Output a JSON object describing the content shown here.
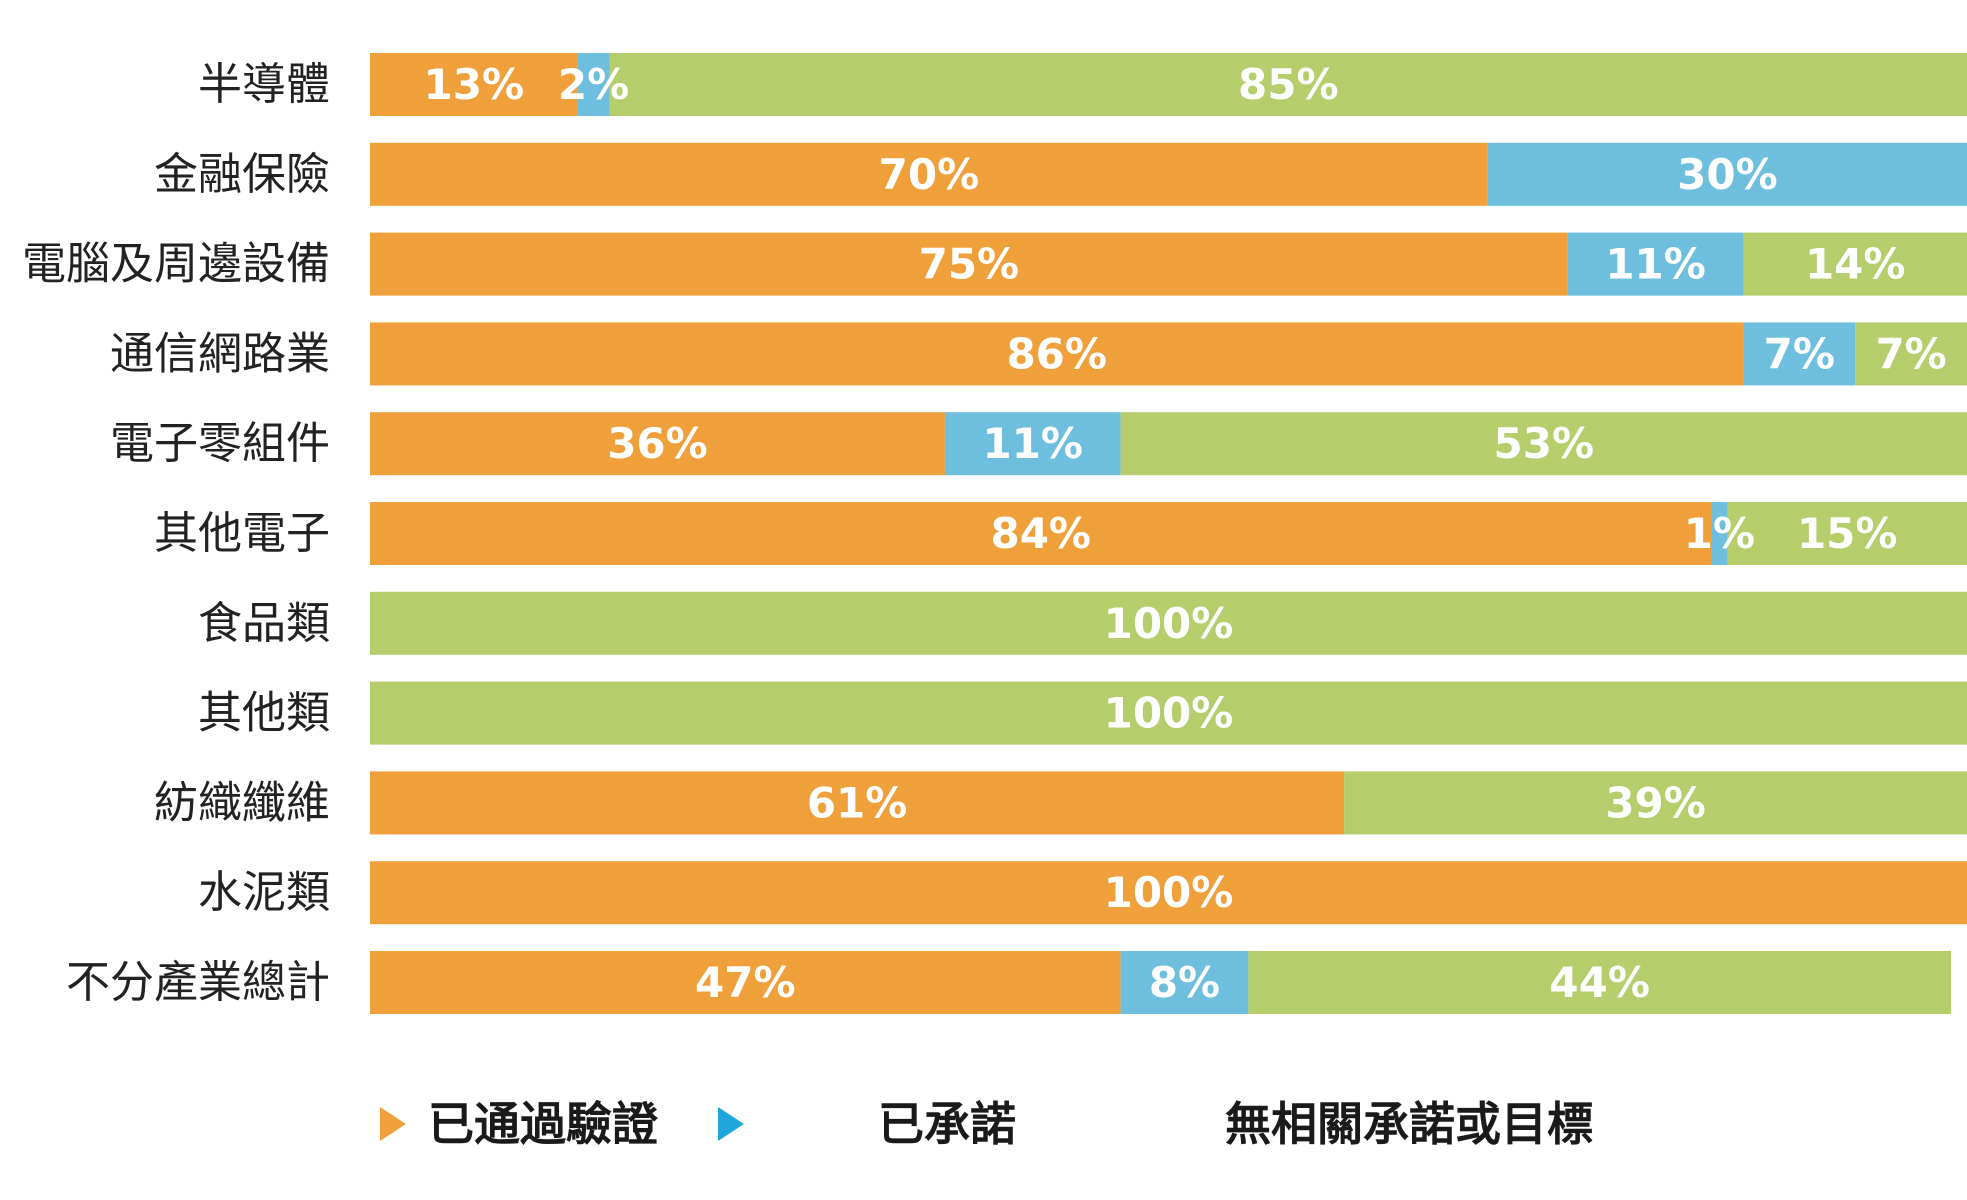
{
  "chart_data": {
    "type": "bar",
    "orientation": "horizontal",
    "stacked": true,
    "title": "",
    "xlabel": "",
    "ylabel": "",
    "xlim": [
      0,
      100
    ],
    "grid": false,
    "legend_position": "bottom",
    "categories": [
      "半導體",
      "金融保險",
      "電腦及周邊設備",
      "通信網路業",
      "電子零組件",
      "其他電子",
      "食品類",
      "其他類",
      "紡織纖維",
      "水泥類",
      "不分產業總計"
    ],
    "series": [
      {
        "name": "已通過驗證",
        "color": "#EFA03A",
        "values": [
          13,
          70,
          75,
          86,
          36,
          84,
          0,
          0,
          61,
          100,
          47
        ]
      },
      {
        "name": "已承諾",
        "color": "#6EBEDE",
        "values": [
          2,
          30,
          11,
          7,
          11,
          1,
          0,
          0,
          0,
          0,
          8
        ]
      },
      {
        "name": "無相關承諾或目標",
        "color": "#B5CD6B",
        "values": [
          85,
          0,
          14,
          7,
          53,
          15,
          100,
          100,
          39,
          0,
          44
        ]
      }
    ],
    "data_labels": [
      [
        "13%",
        "2%",
        "85%"
      ],
      [
        "70%",
        "30%",
        ""
      ],
      [
        "75%",
        "11%",
        "14%"
      ],
      [
        "86%",
        "7%",
        "7%"
      ],
      [
        "36%",
        "11%",
        "53%"
      ],
      [
        "84%",
        "1%",
        "15%"
      ],
      [
        "",
        "",
        "100%"
      ],
      [
        "",
        "",
        "100%"
      ],
      [
        "61%",
        "",
        "39%"
      ],
      [
        "100%",
        "",
        ""
      ],
      [
        "47%",
        "8%",
        "44%"
      ]
    ],
    "legend_marker_colors": [
      "#EFA03A",
      "#1FA7DB",
      "#B5CD6B"
    ]
  }
}
